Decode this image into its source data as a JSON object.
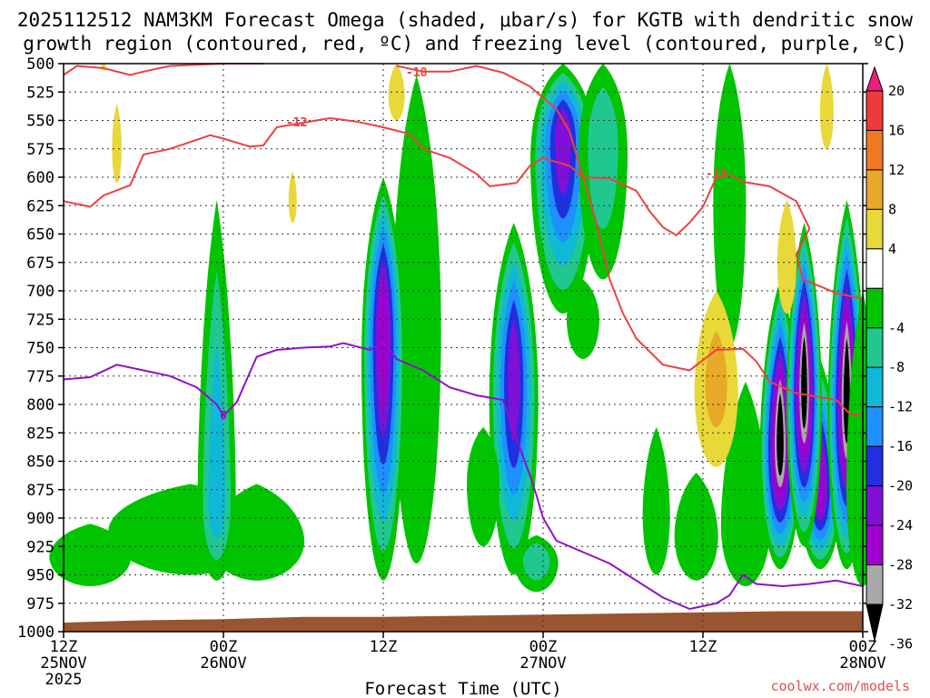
{
  "chart_data": {
    "type": "time-height cross-section",
    "title_line1": "2025112512 NAM3KM Forecast Omega (shaded, μbar/s) for KGTB with dendritic snow",
    "title_line2": "growth region (contoured, red, ºC) and freezing level (contoured, purple, ºC)",
    "xlabel": "Forecast Time (UTC)",
    "credit": "coolwx.com/models",
    "y_axis": {
      "range": [
        500,
        1000
      ],
      "unit": "hPa",
      "ticks": [
        500,
        525,
        550,
        575,
        600,
        625,
        650,
        675,
        700,
        725,
        750,
        775,
        800,
        825,
        850,
        875,
        900,
        925,
        950,
        975,
        1000
      ]
    },
    "x_axis": {
      "range_hours": [
        0,
        60
      ],
      "ticks": [
        {
          "h": 0,
          "l1": "12Z",
          "l2": "25NOV",
          "l3": "2025"
        },
        {
          "h": 12,
          "l1": "00Z",
          "l2": "26NOV",
          "l3": ""
        },
        {
          "h": 24,
          "l1": "12Z",
          "l2": "",
          "l3": ""
        },
        {
          "h": 36,
          "l1": "00Z",
          "l2": "27NOV",
          "l3": ""
        },
        {
          "h": 48,
          "l1": "12Z",
          "l2": "",
          "l3": ""
        },
        {
          "h": 60,
          "l1": "00Z",
          "l2": "28NOV",
          "l3": ""
        }
      ]
    },
    "colorbar": {
      "labels": [
        "20",
        "16",
        "12",
        "8",
        "4",
        "-4",
        "-8",
        "-12",
        "-16",
        "-20",
        "-24",
        "-28",
        "-32",
        "-36"
      ],
      "bins": [
        {
          "lo": 20,
          "color": "#e8207a"
        },
        {
          "lo": 16,
          "color": "#ee3a3a"
        },
        {
          "lo": 12,
          "color": "#f07820"
        },
        {
          "lo": 8,
          "color": "#e8a828"
        },
        {
          "lo": 4,
          "color": "#e8d838"
        },
        {
          "lo": -4,
          "color": "#ffffff"
        },
        {
          "lo": -8,
          "color": "#00c400"
        },
        {
          "lo": -12,
          "color": "#20c890"
        },
        {
          "lo": -16,
          "color": "#10b8d8"
        },
        {
          "lo": -20,
          "color": "#1e90ff"
        },
        {
          "lo": -24,
          "color": "#2030e0"
        },
        {
          "lo": -28,
          "color": "#8010d8"
        },
        {
          "lo": -32,
          "color": "#a000d0"
        },
        {
          "lo": -36,
          "color": "#a8a8a8"
        },
        {
          "lo": -99,
          "color": "#000000"
        }
      ]
    },
    "omega_colors": {
      "c_m4": "#00c400",
      "c_m8": "#20c890",
      "c_m12": "#10b8d8",
      "c_m16": "#1e90ff",
      "c_m20": "#2030e0",
      "c_m24": "#8010d8",
      "c_m28": "#a000d0",
      "c_m32": "#a8a8a8",
      "c_m36": "#000000",
      "c_p4": "#e8d838",
      "c_p8": "#e8a828",
      "terrain": "#985530"
    },
    "omega_features": [
      {
        "h": 11.5,
        "p_top": 620,
        "p_bot": 955,
        "w": 1.4,
        "min": -12,
        "core_p": 880
      },
      {
        "h": 9.5,
        "p_top": 870,
        "p_bot": 950,
        "w": 6.0,
        "min": -4,
        "core_p": 905
      },
      {
        "h": 2.0,
        "p_top": 905,
        "p_bot": 960,
        "w": 3.0,
        "min": -4,
        "core_p": 930
      },
      {
        "h": 14.5,
        "p_top": 870,
        "p_bot": 955,
        "w": 3.5,
        "min": -4,
        "core_p": 915
      },
      {
        "h": 24.0,
        "p_top": 600,
        "p_bot": 955,
        "w": 1.6,
        "min": -28,
        "core_p": 730
      },
      {
        "h": 26.5,
        "p_top": 510,
        "p_bot": 940,
        "w": 1.8,
        "min": -4,
        "core_p": 700
      },
      {
        "h": 33.8,
        "p_top": 640,
        "p_bot": 950,
        "w": 1.8,
        "min": -24,
        "core_p": 770
      },
      {
        "h": 31.5,
        "p_top": 820,
        "p_bot": 925,
        "w": 1.2,
        "min": -4,
        "core_p": 860
      },
      {
        "h": 35.5,
        "p_top": 915,
        "p_bot": 965,
        "w": 1.6,
        "min": -8,
        "core_p": 935
      },
      {
        "h": 37.5,
        "p_top": 500,
        "p_bot": 720,
        "w": 2.4,
        "min": -24,
        "core_p": 560
      },
      {
        "h": 40.5,
        "p_top": 500,
        "p_bot": 690,
        "w": 1.8,
        "min": -8,
        "core_p": 560
      },
      {
        "h": 39.0,
        "p_top": 690,
        "p_bot": 760,
        "w": 1.2,
        "min": -4,
        "core_p": 720
      },
      {
        "h": 50.0,
        "p_top": 500,
        "p_bot": 750,
        "w": 1.2,
        "min": -4,
        "core_p": 600
      },
      {
        "h": 55.6,
        "p_top": 640,
        "p_bot": 925,
        "w": 1.3,
        "min": -36,
        "core_p": 780
      },
      {
        "h": 51.2,
        "p_top": 780,
        "p_bot": 960,
        "w": 1.8,
        "min": -4,
        "core_p": 900
      },
      {
        "h": 47.5,
        "p_top": 860,
        "p_bot": 955,
        "w": 1.6,
        "min": -4,
        "core_p": 910
      },
      {
        "h": 44.5,
        "p_top": 820,
        "p_bot": 950,
        "w": 1.0,
        "min": -4,
        "core_p": 890
      },
      {
        "h": 58.8,
        "p_top": 620,
        "p_bot": 945,
        "w": 1.4,
        "min": -36,
        "core_p": 790
      },
      {
        "h": 53.8,
        "p_top": 690,
        "p_bot": 945,
        "w": 1.5,
        "min": -36,
        "core_p": 830
      },
      {
        "h": 56.8,
        "p_top": 760,
        "p_bot": 945,
        "w": 1.5,
        "min": -28,
        "core_p": 870
      },
      {
        "h": 60.0,
        "p_top": 700,
        "p_bot": 960,
        "w": 1.2,
        "min": -4,
        "core_p": 860
      }
    ],
    "positive_features": [
      {
        "h": 4.0,
        "p_top": 535,
        "p_bot": 605,
        "w": 0.35,
        "max": 4
      },
      {
        "h": 17.2,
        "p_top": 595,
        "p_bot": 640,
        "w": 0.3,
        "max": 4
      },
      {
        "h": 25.0,
        "p_top": 500,
        "p_bot": 550,
        "w": 0.6,
        "max": 4
      },
      {
        "h": 49.0,
        "p_top": 700,
        "p_bot": 855,
        "w": 1.6,
        "max": 8
      },
      {
        "h": 54.3,
        "p_top": 620,
        "p_bot": 720,
        "w": 0.7,
        "max": 4
      },
      {
        "h": 57.3,
        "p_top": 500,
        "p_bot": 575,
        "w": 0.5,
        "max": 4
      },
      {
        "h": 3.0,
        "p_top": 500,
        "p_bot": 506,
        "w": 0.2,
        "max": 4
      }
    ],
    "dgz_contours": [
      {
        "label": "-12",
        "label_at": [
          17.5,
          552
        ],
        "points": [
          [
            0,
            510
          ],
          [
            1,
            502
          ],
          [
            3,
            504
          ],
          [
            5,
            510
          ],
          [
            6,
            507
          ],
          [
            8,
            502
          ],
          [
            10,
            501
          ],
          [
            12,
            500
          ],
          [
            14,
            500
          ],
          [
            15,
            500
          ]
        ]
      },
      {
        "label": "-12",
        "label_at": [
          17.5,
          552
        ],
        "points": [
          [
            0,
            621
          ],
          [
            2,
            626
          ],
          [
            3,
            616
          ],
          [
            5,
            607
          ],
          [
            6,
            580
          ],
          [
            8,
            575
          ],
          [
            10,
            567
          ],
          [
            11,
            563
          ],
          [
            12,
            566
          ],
          [
            14,
            573
          ],
          [
            15,
            572
          ],
          [
            16,
            556
          ],
          [
            18,
            552
          ],
          [
            20,
            548
          ],
          [
            22,
            551
          ],
          [
            24,
            556
          ],
          [
            26,
            562
          ],
          [
            27,
            575
          ],
          [
            29,
            583
          ],
          [
            31,
            597
          ],
          [
            32,
            608
          ],
          [
            34,
            605
          ]
        ]
      },
      {
        "label": "-18",
        "label_at": [
          26.5,
          508
        ],
        "points": [
          [
            25,
            502
          ],
          [
            27,
            507
          ],
          [
            29,
            507
          ],
          [
            31,
            502
          ],
          [
            33,
            508
          ],
          [
            35,
            520
          ],
          [
            37,
            540
          ],
          [
            38,
            560
          ],
          [
            39,
            600
          ],
          [
            40,
            640
          ],
          [
            41,
            690
          ],
          [
            42,
            720
          ],
          [
            43,
            742
          ],
          [
            45,
            765
          ],
          [
            47,
            770
          ],
          [
            49,
            752
          ],
          [
            51,
            751
          ],
          [
            52,
            762
          ],
          [
            53,
            780
          ],
          [
            55,
            790
          ],
          [
            57,
            794
          ],
          [
            58,
            796
          ],
          [
            59,
            808
          ],
          [
            60,
            810
          ]
        ]
      },
      {
        "label": "-18",
        "label_at": [
          49.0,
          597
        ],
        "points": [
          [
            34,
            605
          ],
          [
            35,
            590
          ],
          [
            36,
            583
          ],
          [
            38,
            590
          ],
          [
            39,
            600
          ],
          [
            41,
            601
          ],
          [
            43,
            612
          ],
          [
            44,
            630
          ],
          [
            45,
            644
          ],
          [
            46,
            651
          ],
          [
            47,
            640
          ],
          [
            48,
            626
          ],
          [
            49,
            600
          ],
          [
            50,
            598
          ],
          [
            51,
            604
          ],
          [
            53,
            608
          ],
          [
            55,
            621
          ],
          [
            56,
            645
          ],
          [
            55,
            668
          ],
          [
            55.5,
            690
          ],
          [
            57,
            697
          ],
          [
            58,
            702
          ],
          [
            60,
            707
          ]
        ]
      }
    ],
    "freezing_contour": {
      "label": "0",
      "label_at": [
        12.0,
        810
      ],
      "points": [
        [
          0,
          778
        ],
        [
          2,
          776
        ],
        [
          4,
          765
        ],
        [
          6,
          770
        ],
        [
          8,
          775
        ],
        [
          10,
          785
        ],
        [
          11.5,
          800
        ],
        [
          12,
          810
        ],
        [
          13,
          798
        ],
        [
          14.5,
          758
        ],
        [
          16,
          752
        ],
        [
          18,
          750
        ],
        [
          20,
          749
        ],
        [
          21,
          746
        ],
        [
          23,
          752
        ],
        [
          24,
          745
        ],
        [
          25,
          760
        ],
        [
          27,
          770
        ],
        [
          29,
          785
        ],
        [
          31,
          792
        ],
        [
          33,
          796
        ],
        [
          34,
          830
        ],
        [
          35,
          862
        ],
        [
          35.5,
          880
        ],
        [
          36,
          900
        ],
        [
          37,
          920
        ],
        [
          39,
          930
        ],
        [
          41,
          940
        ],
        [
          43,
          955
        ],
        [
          45,
          970
        ],
        [
          47,
          980
        ],
        [
          49,
          975
        ],
        [
          50,
          968
        ],
        [
          51,
          950
        ],
        [
          52,
          958
        ],
        [
          54,
          960
        ],
        [
          56,
          958
        ],
        [
          58,
          955
        ],
        [
          60,
          960
        ]
      ]
    },
    "surface_pressure": [
      [
        0,
        992
      ],
      [
        6,
        990
      ],
      [
        12,
        989
      ],
      [
        18,
        987
      ],
      [
        24,
        987
      ],
      [
        30,
        986
      ],
      [
        36,
        985
      ],
      [
        42,
        984
      ],
      [
        48,
        983
      ],
      [
        54,
        982
      ],
      [
        60,
        982
      ]
    ]
  }
}
